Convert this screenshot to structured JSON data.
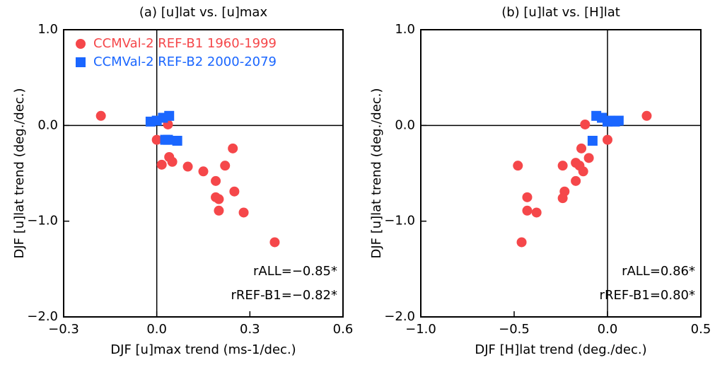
{
  "chart_data": [
    {
      "type": "scatter",
      "title": "(a) [u]lat vs. [u]max",
      "xlabel": "DJF [u]max trend (ms-1/dec.)",
      "ylabel": "DJF [u]lat trend (deg./dec.)",
      "xlim": [
        -0.3,
        0.6
      ],
      "ylim": [
        -2,
        1
      ],
      "xticks": [
        {
          "value": -0.3,
          "label": "−0.3"
        },
        {
          "value": 0,
          "label": "0.0"
        },
        0.3,
        0.6
      ],
      "yticks": [
        {
          "value": -2,
          "label": "−2.0"
        },
        {
          "value": -1,
          "label": "−1.0"
        },
        {
          "value": 0,
          "label": "0.0"
        },
        {
          "value": 1,
          "label": "1.0"
        }
      ],
      "zero_lines": true,
      "legend": "upper left",
      "annotations": [
        "rALL=−0.85*",
        "rREF-B1=−0.82*"
      ],
      "series": [
        {
          "name": "CCMVal-2 REF-B1 1960-1999",
          "color": "#f5474a",
          "marker": "circle",
          "x": [
            -0.18,
            0.0,
            0.036,
            0.04,
            0.05,
            0.016,
            0.1,
            0.15,
            0.22,
            0.245,
            0.19,
            0.19,
            0.2,
            0.2,
            0.25,
            0.28,
            0.38
          ],
          "y": [
            0.1,
            -0.15,
            0.01,
            -0.33,
            -0.38,
            -0.41,
            -0.43,
            -0.48,
            -0.42,
            -0.24,
            -0.58,
            -0.75,
            -0.77,
            -0.89,
            -0.69,
            -0.91,
            -1.22
          ]
        },
        {
          "name": "CCMVal-2 REF-B2 2000-2079",
          "color": "#1a66ff",
          "marker": "square",
          "x": [
            -0.02,
            0.0,
            0.02,
            0.04,
            0.036,
            0.066,
            0.027
          ],
          "y": [
            0.04,
            0.05,
            0.08,
            0.1,
            -0.15,
            -0.16,
            -0.15
          ]
        }
      ]
    },
    {
      "type": "scatter",
      "title": "(b) [u]lat vs. [H]lat",
      "xlabel": "DJF [H]lat trend (deg./dec.)",
      "ylabel": "DJF [u]lat trend (deg./dec.)",
      "xlim": [
        -1,
        0.5
      ],
      "ylim": [
        -2,
        1
      ],
      "xticks": [
        {
          "value": -1,
          "label": "−1.0"
        },
        {
          "value": -0.5,
          "label": "−0.5"
        },
        {
          "value": 0,
          "label": "0.0"
        },
        0.5
      ],
      "yticks": [
        {
          "value": -2,
          "label": "−2.0"
        },
        {
          "value": -1,
          "label": "−1.0"
        },
        {
          "value": 0,
          "label": "0.0"
        },
        {
          "value": 1,
          "label": "1.0"
        }
      ],
      "zero_lines": true,
      "annotations": [
        "rALL=0.86*",
        "rREF-B1=0.80*"
      ],
      "series": [
        {
          "color": "#f5474a",
          "marker": "circle",
          "x": [
            -0.48,
            0.21,
            0.0,
            -0.12,
            -0.14,
            -0.1,
            -0.13,
            -0.17,
            -0.15,
            -0.24,
            -0.23,
            -0.17,
            -0.24,
            -0.43,
            -0.43,
            -0.38,
            -0.46
          ],
          "y": [
            -0.42,
            0.1,
            -0.15,
            0.01,
            -0.24,
            -0.34,
            -0.48,
            -0.39,
            -0.42,
            -0.42,
            -0.69,
            -0.58,
            -0.76,
            -0.75,
            -0.89,
            -0.91,
            -1.22
          ]
        },
        {
          "color": "#1a66ff",
          "marker": "square",
          "x": [
            -0.06,
            -0.03,
            0.0,
            0.04,
            0.06,
            -0.08,
            0.01
          ],
          "y": [
            0.1,
            0.08,
            0.04,
            0.04,
            0.05,
            -0.16,
            0.05
          ]
        }
      ]
    }
  ]
}
